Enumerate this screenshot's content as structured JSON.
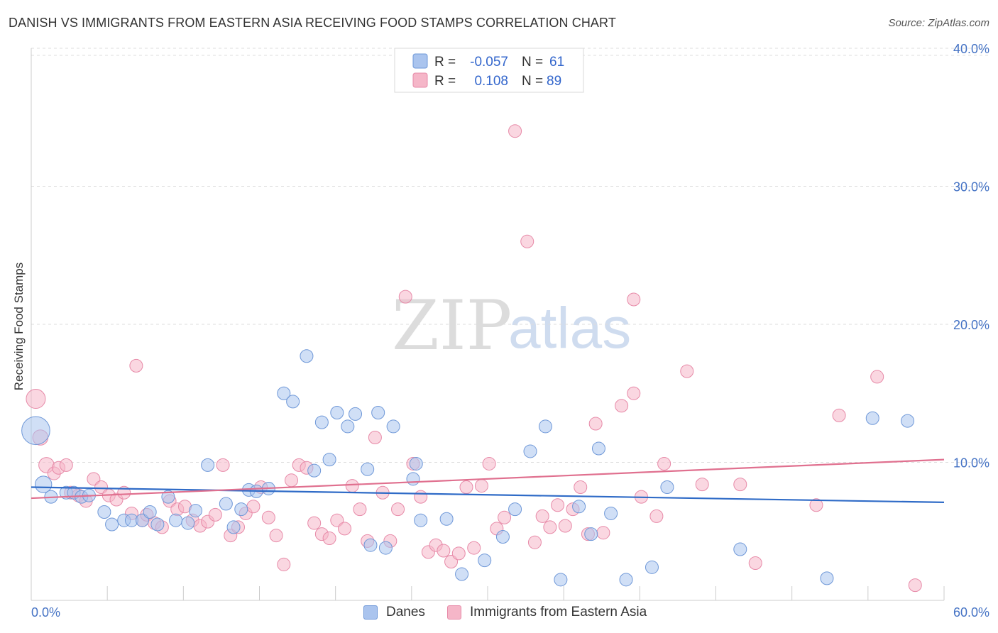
{
  "header": {
    "title": "DANISH VS IMMIGRANTS FROM EASTERN ASIA RECEIVING FOOD STAMPS CORRELATION CHART",
    "source": "Source: ZipAtlas.com"
  },
  "watermark": {
    "zip": "ZIP",
    "atlas": "atlas"
  },
  "legend": {
    "rows": [
      {
        "r_label": "R =",
        "r_value": "-0.057",
        "n_label": "N =",
        "n_value": "61"
      },
      {
        "r_label": "R =",
        "r_value": "0.108",
        "n_label": "N =",
        "n_value": "89"
      }
    ]
  },
  "bottom_legend": {
    "danes": "Danes",
    "immigrants": "Immigrants from Eastern Asia"
  },
  "colors": {
    "danes_fill": "#aac4ee",
    "danes_stroke": "#6f98d8",
    "danes_line": "#2f6bc7",
    "imm_fill": "#f5b6c8",
    "imm_stroke": "#e78aa8",
    "imm_line": "#e0708f",
    "grid": "#dddddd",
    "tick_text": "#4472c4"
  },
  "chart_data": {
    "type": "scatter",
    "title": "DANISH VS IMMIGRANTS FROM EASTERN ASIA RECEIVING FOOD STAMPS CORRELATION CHART",
    "xlabel": "",
    "ylabel": "Receiving Food Stamps",
    "xlim": [
      0,
      60
    ],
    "ylim": [
      0,
      40
    ],
    "x_tick_labels": [
      "0.0%",
      "60.0%"
    ],
    "y_ticks": [
      10,
      20,
      30,
      40
    ],
    "y_tick_labels": [
      "10.0%",
      "20.0%",
      "30.0%",
      "40.0%"
    ],
    "grid": true,
    "legend_position": "top-center",
    "series": [
      {
        "name": "Danes",
        "r": -0.057,
        "n": 61,
        "trend": [
          [
            0,
            8.2
          ],
          [
            60,
            7.1
          ]
        ],
        "points": [
          {
            "x": 0.3,
            "y": 12.3,
            "s": 2.2
          },
          {
            "x": 0.8,
            "y": 8.4,
            "s": 1.3
          },
          {
            "x": 1.3,
            "y": 7.5,
            "s": 1
          },
          {
            "x": 2.3,
            "y": 7.8,
            "s": 1
          },
          {
            "x": 2.8,
            "y": 7.8,
            "s": 1
          },
          {
            "x": 3.3,
            "y": 7.5,
            "s": 1
          },
          {
            "x": 3.8,
            "y": 7.6,
            "s": 1
          },
          {
            "x": 4.8,
            "y": 6.4,
            "s": 1
          },
          {
            "x": 5.3,
            "y": 5.5,
            "s": 1
          },
          {
            "x": 6.1,
            "y": 5.8,
            "s": 1
          },
          {
            "x": 6.6,
            "y": 5.8,
            "s": 1
          },
          {
            "x": 7.3,
            "y": 5.8,
            "s": 1
          },
          {
            "x": 7.8,
            "y": 6.4,
            "s": 1
          },
          {
            "x": 8.3,
            "y": 5.5,
            "s": 1
          },
          {
            "x": 9.0,
            "y": 7.5,
            "s": 1
          },
          {
            "x": 9.5,
            "y": 5.8,
            "s": 1
          },
          {
            "x": 10.3,
            "y": 5.6,
            "s": 1
          },
          {
            "x": 10.8,
            "y": 6.5,
            "s": 1
          },
          {
            "x": 11.6,
            "y": 9.8,
            "s": 1
          },
          {
            "x": 12.8,
            "y": 7.0,
            "s": 1
          },
          {
            "x": 13.3,
            "y": 5.3,
            "s": 1
          },
          {
            "x": 13.8,
            "y": 6.6,
            "s": 1
          },
          {
            "x": 14.3,
            "y": 8.0,
            "s": 1
          },
          {
            "x": 14.8,
            "y": 7.9,
            "s": 1
          },
          {
            "x": 15.6,
            "y": 8.1,
            "s": 1
          },
          {
            "x": 16.6,
            "y": 15.0,
            "s": 1
          },
          {
            "x": 17.2,
            "y": 14.4,
            "s": 1
          },
          {
            "x": 18.1,
            "y": 17.7,
            "s": 1
          },
          {
            "x": 18.6,
            "y": 9.4,
            "s": 1
          },
          {
            "x": 19.1,
            "y": 12.9,
            "s": 1
          },
          {
            "x": 19.6,
            "y": 10.2,
            "s": 1
          },
          {
            "x": 20.1,
            "y": 13.6,
            "s": 1
          },
          {
            "x": 20.8,
            "y": 12.6,
            "s": 1
          },
          {
            "x": 21.3,
            "y": 13.5,
            "s": 1
          },
          {
            "x": 22.1,
            "y": 9.5,
            "s": 1
          },
          {
            "x": 22.3,
            "y": 4.0,
            "s": 1
          },
          {
            "x": 22.8,
            "y": 13.6,
            "s": 1
          },
          {
            "x": 23.3,
            "y": 3.8,
            "s": 1
          },
          {
            "x": 23.8,
            "y": 12.6,
            "s": 1
          },
          {
            "x": 25.3,
            "y": 9.9,
            "s": 1
          },
          {
            "x": 25.6,
            "y": 5.8,
            "s": 1
          },
          {
            "x": 25.1,
            "y": 8.8,
            "s": 1
          },
          {
            "x": 27.3,
            "y": 5.9,
            "s": 1
          },
          {
            "x": 28.3,
            "y": 1.9,
            "s": 1
          },
          {
            "x": 29.8,
            "y": 2.9,
            "s": 1
          },
          {
            "x": 31.0,
            "y": 4.6,
            "s": 1
          },
          {
            "x": 31.8,
            "y": 6.6,
            "s": 1
          },
          {
            "x": 32.8,
            "y": 10.8,
            "s": 1
          },
          {
            "x": 33.8,
            "y": 12.6,
            "s": 1
          },
          {
            "x": 34.8,
            "y": 1.5,
            "s": 1
          },
          {
            "x": 36.0,
            "y": 6.8,
            "s": 1
          },
          {
            "x": 36.8,
            "y": 4.8,
            "s": 1
          },
          {
            "x": 37.3,
            "y": 11.0,
            "s": 1
          },
          {
            "x": 38.1,
            "y": 6.3,
            "s": 1
          },
          {
            "x": 39.1,
            "y": 1.5,
            "s": 1
          },
          {
            "x": 40.8,
            "y": 2.4,
            "s": 1
          },
          {
            "x": 41.8,
            "y": 8.2,
            "s": 1
          },
          {
            "x": 46.6,
            "y": 3.7,
            "s": 1
          },
          {
            "x": 52.3,
            "y": 1.6,
            "s": 1
          },
          {
            "x": 55.3,
            "y": 13.2,
            "s": 1
          },
          {
            "x": 57.6,
            "y": 13.0,
            "s": 1
          }
        ]
      },
      {
        "name": "Immigrants from Eastern Asia",
        "r": 0.108,
        "n": 89,
        "trend": [
          [
            0,
            7.4
          ],
          [
            60,
            10.2
          ]
        ],
        "points": [
          {
            "x": 0.3,
            "y": 14.6,
            "s": 1.5
          },
          {
            "x": 0.6,
            "y": 11.8,
            "s": 1.2
          },
          {
            "x": 1.0,
            "y": 9.8,
            "s": 1.2
          },
          {
            "x": 1.5,
            "y": 9.2,
            "s": 1
          },
          {
            "x": 1.8,
            "y": 9.6,
            "s": 1
          },
          {
            "x": 2.3,
            "y": 9.8,
            "s": 1
          },
          {
            "x": 2.6,
            "y": 7.8,
            "s": 1
          },
          {
            "x": 3.1,
            "y": 7.6,
            "s": 1
          },
          {
            "x": 3.6,
            "y": 7.2,
            "s": 1
          },
          {
            "x": 4.1,
            "y": 8.8,
            "s": 1
          },
          {
            "x": 4.6,
            "y": 8.2,
            "s": 1
          },
          {
            "x": 5.1,
            "y": 7.6,
            "s": 1
          },
          {
            "x": 5.6,
            "y": 7.3,
            "s": 1
          },
          {
            "x": 6.1,
            "y": 7.8,
            "s": 1
          },
          {
            "x": 6.6,
            "y": 6.3,
            "s": 1
          },
          {
            "x": 6.9,
            "y": 17.0,
            "s": 1
          },
          {
            "x": 7.3,
            "y": 5.8,
            "s": 1
          },
          {
            "x": 7.6,
            "y": 6.2,
            "s": 1
          },
          {
            "x": 8.1,
            "y": 5.6,
            "s": 1
          },
          {
            "x": 8.6,
            "y": 5.3,
            "s": 1
          },
          {
            "x": 9.1,
            "y": 7.2,
            "s": 1
          },
          {
            "x": 9.6,
            "y": 6.6,
            "s": 1
          },
          {
            "x": 10.1,
            "y": 6.8,
            "s": 1
          },
          {
            "x": 10.6,
            "y": 5.8,
            "s": 1
          },
          {
            "x": 11.1,
            "y": 5.4,
            "s": 1
          },
          {
            "x": 11.6,
            "y": 5.7,
            "s": 1
          },
          {
            "x": 12.1,
            "y": 6.2,
            "s": 1
          },
          {
            "x": 12.6,
            "y": 9.8,
            "s": 1
          },
          {
            "x": 13.1,
            "y": 4.7,
            "s": 1
          },
          {
            "x": 13.6,
            "y": 5.3,
            "s": 1
          },
          {
            "x": 14.1,
            "y": 6.3,
            "s": 1
          },
          {
            "x": 14.6,
            "y": 6.8,
            "s": 1
          },
          {
            "x": 15.1,
            "y": 8.2,
            "s": 1
          },
          {
            "x": 15.6,
            "y": 6.0,
            "s": 1
          },
          {
            "x": 16.1,
            "y": 4.7,
            "s": 1
          },
          {
            "x": 16.6,
            "y": 2.6,
            "s": 1
          },
          {
            "x": 17.1,
            "y": 8.7,
            "s": 1
          },
          {
            "x": 17.6,
            "y": 9.8,
            "s": 1
          },
          {
            "x": 18.1,
            "y": 9.6,
            "s": 1
          },
          {
            "x": 18.6,
            "y": 5.6,
            "s": 1
          },
          {
            "x": 19.1,
            "y": 4.8,
            "s": 1
          },
          {
            "x": 19.6,
            "y": 4.5,
            "s": 1
          },
          {
            "x": 20.1,
            "y": 5.8,
            "s": 1
          },
          {
            "x": 20.6,
            "y": 5.2,
            "s": 1
          },
          {
            "x": 21.1,
            "y": 8.3,
            "s": 1
          },
          {
            "x": 21.6,
            "y": 6.6,
            "s": 1
          },
          {
            "x": 22.1,
            "y": 4.3,
            "s": 1
          },
          {
            "x": 22.6,
            "y": 11.8,
            "s": 1
          },
          {
            "x": 23.1,
            "y": 7.8,
            "s": 1
          },
          {
            "x": 23.6,
            "y": 4.3,
            "s": 1
          },
          {
            "x": 24.1,
            "y": 6.6,
            "s": 1
          },
          {
            "x": 24.6,
            "y": 22.0,
            "s": 1
          },
          {
            "x": 25.1,
            "y": 9.9,
            "s": 1
          },
          {
            "x": 25.6,
            "y": 7.5,
            "s": 1
          },
          {
            "x": 26.1,
            "y": 3.5,
            "s": 1
          },
          {
            "x": 26.6,
            "y": 4.0,
            "s": 1
          },
          {
            "x": 27.1,
            "y": 3.6,
            "s": 1
          },
          {
            "x": 27.6,
            "y": 2.8,
            "s": 1
          },
          {
            "x": 28.1,
            "y": 3.4,
            "s": 1
          },
          {
            "x": 28.6,
            "y": 8.2,
            "s": 1
          },
          {
            "x": 29.1,
            "y": 3.8,
            "s": 1
          },
          {
            "x": 29.6,
            "y": 8.3,
            "s": 1
          },
          {
            "x": 30.1,
            "y": 9.9,
            "s": 1
          },
          {
            "x": 30.6,
            "y": 5.2,
            "s": 1
          },
          {
            "x": 31.1,
            "y": 6.0,
            "s": 1
          },
          {
            "x": 31.8,
            "y": 34.0,
            "s": 1
          },
          {
            "x": 32.6,
            "y": 26.0,
            "s": 1
          },
          {
            "x": 33.1,
            "y": 4.2,
            "s": 1
          },
          {
            "x": 33.6,
            "y": 6.1,
            "s": 1
          },
          {
            "x": 34.1,
            "y": 5.3,
            "s": 1
          },
          {
            "x": 34.6,
            "y": 6.9,
            "s": 1
          },
          {
            "x": 35.1,
            "y": 5.4,
            "s": 1
          },
          {
            "x": 35.6,
            "y": 6.6,
            "s": 1
          },
          {
            "x": 36.1,
            "y": 8.2,
            "s": 1
          },
          {
            "x": 36.6,
            "y": 4.8,
            "s": 1
          },
          {
            "x": 37.1,
            "y": 12.8,
            "s": 1
          },
          {
            "x": 37.6,
            "y": 4.9,
            "s": 1
          },
          {
            "x": 38.8,
            "y": 14.1,
            "s": 1
          },
          {
            "x": 39.6,
            "y": 15.0,
            "s": 1
          },
          {
            "x": 40.1,
            "y": 7.5,
            "s": 1
          },
          {
            "x": 39.6,
            "y": 21.8,
            "s": 1
          },
          {
            "x": 41.1,
            "y": 6.1,
            "s": 1
          },
          {
            "x": 41.6,
            "y": 9.9,
            "s": 1
          },
          {
            "x": 43.1,
            "y": 16.6,
            "s": 1
          },
          {
            "x": 44.1,
            "y": 8.4,
            "s": 1
          },
          {
            "x": 46.6,
            "y": 8.4,
            "s": 1
          },
          {
            "x": 47.6,
            "y": 2.7,
            "s": 1
          },
          {
            "x": 51.6,
            "y": 6.9,
            "s": 1
          },
          {
            "x": 53.1,
            "y": 13.4,
            "s": 1
          },
          {
            "x": 55.6,
            "y": 16.2,
            "s": 1
          },
          {
            "x": 58.1,
            "y": 1.1,
            "s": 1
          }
        ]
      }
    ]
  }
}
